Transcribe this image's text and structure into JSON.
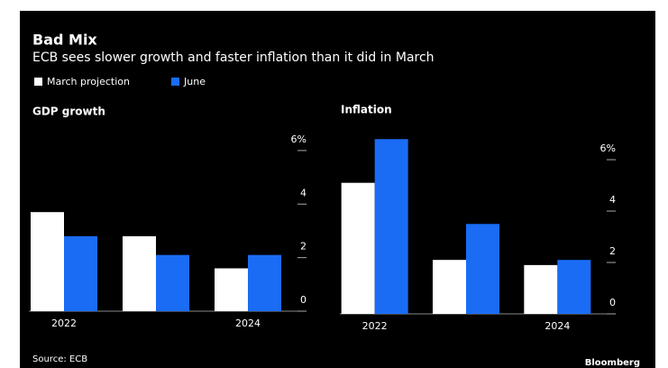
{
  "title": "Bad Mix",
  "subtitle": "ECB sees slower growth and faster inflation than it did in March",
  "source": "Source: ECB",
  "brand": "Bloomberg",
  "chart_data": [
    {
      "type": "bar",
      "title": "GDP growth",
      "categories": [
        "2022",
        null,
        "2024"
      ],
      "series": [
        {
          "name": "March projection",
          "color": "#ffffff",
          "values": [
            3.7,
            2.8,
            1.6
          ]
        },
        {
          "name": "June",
          "color": "#1a6cf5",
          "values": [
            2.8,
            2.1,
            2.1
          ]
        }
      ],
      "ylim": [
        0,
        6.3
      ],
      "yticks": [
        0,
        2,
        4,
        {
          "value": 6,
          "label": "6%"
        }
      ]
    },
    {
      "type": "bar",
      "title": "Inflation",
      "categories": [
        "2022",
        null,
        "2024"
      ],
      "series": [
        {
          "name": "March projection",
          "color": "#ffffff",
          "values": [
            5.1,
            2.1,
            1.9
          ]
        },
        {
          "name": "June",
          "color": "#1a6cf5",
          "values": [
            6.8,
            3.5,
            2.1
          ]
        }
      ],
      "ylim": [
        0,
        7.3
      ],
      "yticks": [
        0,
        2,
        4,
        {
          "value": 6,
          "label": "6%"
        }
      ]
    }
  ]
}
